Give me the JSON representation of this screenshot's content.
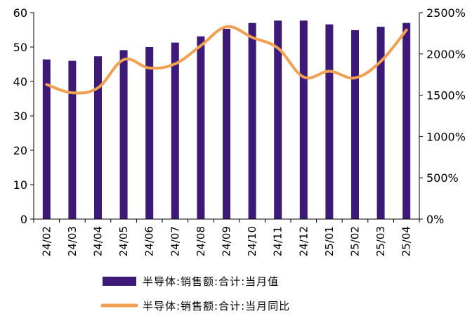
{
  "chart_data": {
    "type": "bar",
    "categories": [
      "24/02",
      "24/03",
      "24/04",
      "24/05",
      "24/06",
      "24/07",
      "24/08",
      "24/09",
      "24/10",
      "24/11",
      "24/12",
      "25/01",
      "25/02",
      "25/03",
      "25/04"
    ],
    "series": [
      {
        "name": "半导体:销售额:合计:当月值",
        "type": "bar",
        "axis": "left",
        "color": "#3d1a78",
        "values": [
          46.4,
          46.0,
          47.3,
          49.1,
          50.0,
          51.3,
          53.1,
          55.3,
          57.0,
          57.7,
          57.7,
          56.6,
          54.9,
          55.9,
          57.0
        ]
      },
      {
        "name": "半导体:销售额:合计:当月同比",
        "type": "line",
        "axis": "right",
        "color": "#f0a050",
        "values": [
          1630,
          1530,
          1590,
          1930,
          1830,
          1880,
          2100,
          2330,
          2200,
          2070,
          1720,
          1790,
          1710,
          1910,
          2290
        ]
      }
    ],
    "y_left": {
      "min": 0,
      "max": 60,
      "ticks": [
        "0",
        "10",
        "20",
        "30",
        "40",
        "50",
        "60"
      ]
    },
    "y_right": {
      "min": 0,
      "max": 2500,
      "ticks": [
        "0%",
        "500%",
        "1000%",
        "1500%",
        "2000%",
        "2500%"
      ]
    },
    "grid": false,
    "legend_position": "bottom"
  }
}
